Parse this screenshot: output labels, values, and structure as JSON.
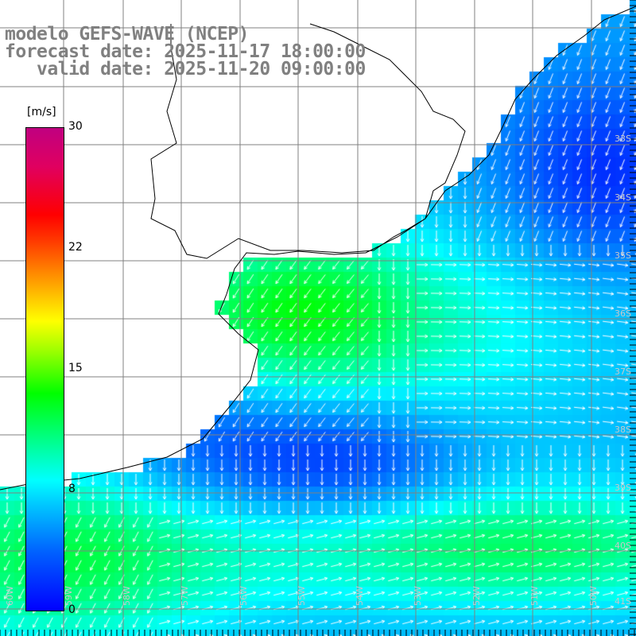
{
  "header": {
    "model": "modelo GEFS-WAVE (NCEP)",
    "forecast": "forecast date: 2025-11-17 18:00:00",
    "valid": "   valid date: 2025-11-20 09:00:00"
  },
  "colorbar": {
    "unit": "[m/s]",
    "ticks": [
      "30",
      "22",
      "15",
      "8",
      "0"
    ],
    "tick_values": [
      30,
      22,
      15,
      8,
      0
    ],
    "range": [
      0,
      30
    ],
    "colors": {
      "min": "#0000ff",
      "low": "#00ffff",
      "mid": "#00ff00",
      "high": "#ffff00",
      "max": "#c00080"
    }
  },
  "map": {
    "land_color": "#ffffff",
    "grid_color": "#808080",
    "arrow_color": "#ffffff",
    "lat_labels": [
      "33S",
      "34S",
      "35S",
      "36S",
      "37S",
      "38S",
      "39S",
      "40S",
      "41S"
    ],
    "lon_labels": [
      "60W",
      "59W",
      "58W",
      "57W",
      "56W",
      "55W",
      "54W",
      "53W",
      "52W",
      "51W",
      "50W"
    ]
  }
}
